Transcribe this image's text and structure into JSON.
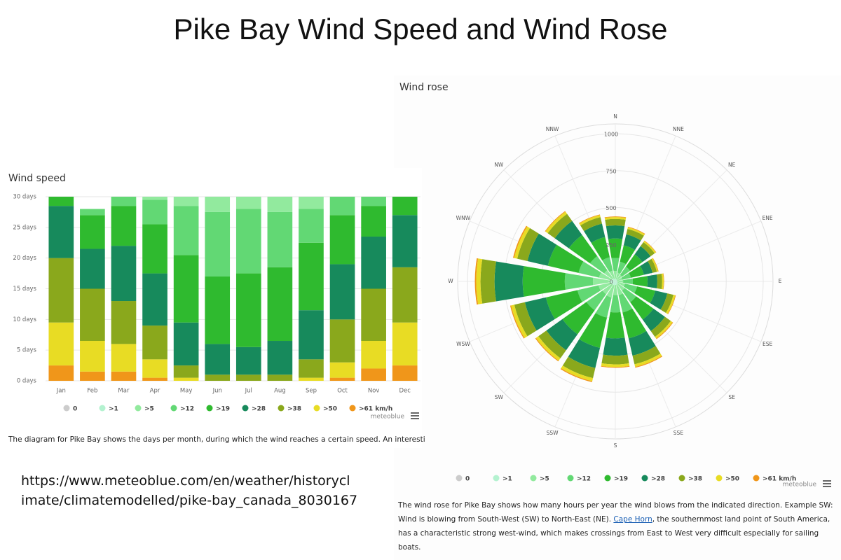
{
  "title": "Pike Bay Wind Speed and Wind Rose",
  "url_lines": [
    "https://www.meteoblue.com/en/weather/historycl",
    "imate/climatemodelled/pike-bay_canada_8030167"
  ],
  "chart_data": [
    {
      "type": "stacked_bar",
      "title": "Wind speed",
      "categories": [
        "Jan",
        "Feb",
        "Mar",
        "Apr",
        "May",
        "Jun",
        "Jul",
        "Aug",
        "Sep",
        "Oct",
        "Nov",
        "Dec"
      ],
      "series": [
        {
          "name": "0",
          "color": "#cccccc",
          "values": [
            0,
            0,
            0,
            0,
            0,
            0,
            0,
            0,
            0,
            0,
            0,
            0
          ]
        },
        {
          "name": ">1",
          "color": "#b4f2d0",
          "values": [
            0,
            0,
            0,
            0,
            0,
            0,
            0,
            0,
            0,
            0,
            0,
            0
          ]
        },
        {
          "name": ">5",
          "color": "#92ea9e",
          "values": [
            0,
            0,
            0,
            0.5,
            1.5,
            2.5,
            2,
            2.5,
            2,
            0,
            0,
            0
          ]
        },
        {
          "name": ">12",
          "color": "#62d874",
          "values": [
            0,
            1,
            1.5,
            4,
            8,
            10.5,
            10.5,
            9,
            5.5,
            3,
            1.5,
            0
          ]
        },
        {
          "name": ">19",
          "color": "#2fba2f",
          "values": [
            1.5,
            5.5,
            6.5,
            8,
            11,
            11,
            12,
            12,
            11,
            8,
            5,
            3
          ]
        },
        {
          "name": ">28",
          "color": "#178a5c",
          "values": [
            8.5,
            6.5,
            9,
            8.5,
            7,
            5,
            4.5,
            5.5,
            8,
            9,
            8.5,
            8.5
          ]
        },
        {
          "name": ">38",
          "color": "#8aa81c",
          "values": [
            10.5,
            8.5,
            7,
            5.5,
            2,
            1,
            1,
            1,
            3,
            7,
            8.5,
            9
          ]
        },
        {
          "name": ">50",
          "color": "#e8dc24",
          "values": [
            7,
            5,
            4.5,
            3,
            0.5,
            0,
            0,
            0,
            0.5,
            2.5,
            4.5,
            7
          ]
        },
        {
          "name": ">61 km/h",
          "color": "#f0961a",
          "values": [
            2.5,
            1.5,
            1.5,
            0.5,
            0,
            0,
            0,
            0,
            0,
            0.5,
            2,
            2.5
          ]
        }
      ],
      "ylim": [
        0,
        30
      ],
      "yticks": [
        {
          "value": 0,
          "label": "0 days"
        },
        {
          "value": 5,
          "label": "5 days"
        },
        {
          "value": 10,
          "label": "10 days"
        },
        {
          "value": 15,
          "label": "15 days"
        },
        {
          "value": 20,
          "label": "20 days"
        },
        {
          "value": 25,
          "label": "25 days"
        },
        {
          "value": 30,
          "label": "30 days"
        }
      ],
      "grid": true,
      "source": "meteoblue",
      "caption": "The diagram for Pike Bay shows the days per month, during which the wind reaches a certain speed. An interesting"
    },
    {
      "type": "wind_rose",
      "title": "Wind rose",
      "categories": [
        "N",
        "NNE",
        "NE",
        "ENE",
        "E",
        "ESE",
        "SE",
        "SSE",
        "S",
        "SSW",
        "SW",
        "WSW",
        "W",
        "WNW",
        "NW",
        "NNW"
      ],
      "series": [
        {
          "name": "0",
          "color": "#cccccc",
          "values": [
            0,
            0,
            0,
            0,
            0,
            0,
            0,
            0,
            0,
            0,
            0,
            0,
            0,
            0,
            0,
            0
          ]
        },
        {
          "name": ">1",
          "color": "#b4f2d0",
          "values": [
            18,
            15,
            14,
            12,
            13,
            17,
            19,
            24,
            23,
            28,
            27,
            29,
            38,
            28,
            23,
            19
          ]
        },
        {
          "name": ">5",
          "color": "#92ea9e",
          "values": [
            53,
            46,
            41,
            36,
            40,
            50,
            58,
            72,
            70,
            84,
            80,
            88,
            114,
            85,
            70,
            56
          ]
        },
        {
          "name": ">12",
          "color": "#62d874",
          "values": [
            88,
            76,
            68,
            60,
            66,
            84,
            96,
            120,
            117,
            140,
            133,
            146,
            190,
            142,
            117,
            93
          ]
        },
        {
          "name": ">19",
          "color": "#2fba2f",
          "values": [
            132,
            114,
            102,
            90,
            99,
            126,
            144,
            180,
            176,
            210,
            200,
            219,
            285,
            213,
            176,
            140
          ]
        },
        {
          "name": ">28",
          "color": "#178a5c",
          "values": [
            88,
            76,
            68,
            60,
            66,
            84,
            96,
            120,
            117,
            140,
            133,
            146,
            190,
            142,
            117,
            93
          ]
        },
        {
          "name": ">38",
          "color": "#8aa81c",
          "values": [
            44,
            38,
            34,
            30,
            33,
            42,
            48,
            60,
            59,
            70,
            66,
            73,
            95,
            71,
            59,
            46
          ]
        },
        {
          "name": ">50",
          "color": "#e8dc24",
          "values": [
            13,
            11,
            10,
            9,
            10,
            13,
            14,
            18,
            18,
            21,
            20,
            22,
            29,
            21,
            18,
            14
          ]
        },
        {
          "name": ">61 km/h",
          "color": "#f0961a",
          "values": [
            4,
            4,
            3,
            3,
            3,
            4,
            5,
            6,
            5,
            7,
            6,
            7,
            9,
            8,
            5,
            4
          ]
        }
      ],
      "ylim": [
        0,
        1000
      ],
      "yticks": [
        0,
        250,
        500,
        750,
        1000
      ],
      "grid": true,
      "source": "meteoblue",
      "caption_parts": [
        "The wind rose for Pike Bay shows how many hours per year the wind blows from the indicated direction. Example SW: Wind is blowing from South-West (SW) to North-East (NE). ",
        "Cape Horn",
        ", the southernmost land point of South America, has a characteristic strong west-wind, which makes crossings from East to West very difficult especially for sailing boats."
      ]
    }
  ]
}
